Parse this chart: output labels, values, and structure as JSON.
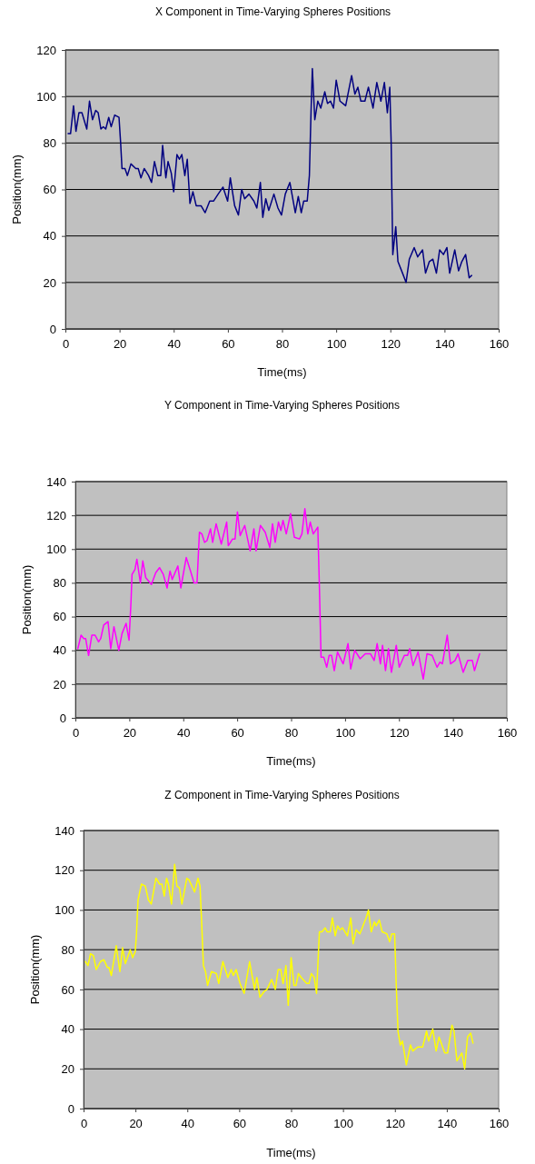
{
  "chart_data": [
    {
      "type": "line",
      "title": "X Component in Time-Varying Spheres Positions",
      "xlabel": "Time(ms)",
      "ylabel": "Position(mm)",
      "xlim": [
        0,
        160
      ],
      "xticks": [
        0,
        20,
        40,
        60,
        80,
        100,
        120,
        140,
        160
      ],
      "ylim": [
        0,
        120
      ],
      "yticks": [
        0,
        20,
        40,
        60,
        80,
        100,
        120
      ],
      "grid": "y",
      "series": [
        {
          "color": "#000080",
          "x": [
            1,
            1.9,
            3,
            3.9,
            5,
            6.1,
            7.9,
            8.9,
            10,
            11.2,
            12.1,
            13.1,
            14,
            14.9,
            16,
            16.9,
            18.2,
            19.8,
            20.4,
            20.9,
            22,
            22.9,
            24.2,
            26,
            26.9,
            27.9,
            29.1,
            30.7,
            31.8,
            32.9,
            34.1,
            35.2,
            35.9,
            37.1,
            37.9,
            39.1,
            40,
            41.2,
            42.1,
            43,
            44.1,
            45,
            46,
            47.1,
            48.3,
            50.1,
            51.6,
            53.3,
            54.7,
            56.4,
            58.2,
            59.9,
            60.9,
            62.5,
            63.9,
            65.1,
            66.2,
            67.8,
            69.6,
            70.7,
            72,
            72.9,
            74,
            75.1,
            77,
            78.5,
            79.8,
            81.2,
            82.9,
            84.9,
            86,
            87.1,
            88,
            89.3,
            90.1,
            90.7,
            91.2,
            92.1,
            93.2,
            94.3,
            95.8,
            96.8,
            97.9,
            99,
            100,
            101.4,
            103.5,
            105.7,
            106.9,
            108,
            109.1,
            110.6,
            111.9,
            113.6,
            115,
            116.5,
            117.8,
            118.9,
            119.8,
            120.3,
            120.9,
            122,
            122.8,
            124.5,
            125.8,
            127,
            128.8,
            130.1,
            131.9,
            133,
            134.4,
            135.7,
            137,
            138.2,
            139.6,
            140.9,
            141.9,
            143.8,
            145.2,
            146.4,
            147.8,
            149.1,
            150
          ],
          "values": [
            84,
            84,
            96,
            85,
            93,
            93,
            86,
            98,
            90,
            94,
            93,
            86,
            87,
            86,
            91,
            87,
            92,
            91,
            80,
            69,
            69,
            66,
            71,
            69,
            69,
            65,
            69,
            66,
            63,
            72,
            66,
            66,
            79,
            65,
            72,
            67,
            59,
            75,
            73,
            75,
            66,
            73,
            54,
            59,
            53,
            53,
            50,
            55,
            55,
            58,
            61,
            55,
            65,
            53,
            49,
            60,
            56,
            58,
            55,
            52,
            63,
            48,
            56,
            51,
            58,
            52,
            49,
            58,
            63,
            50,
            57,
            50,
            55,
            55,
            66,
            93,
            112,
            90,
            98,
            95,
            102,
            97,
            98,
            95,
            107,
            98,
            96,
            109,
            101,
            104,
            98,
            98,
            104,
            95,
            106,
            98,
            106,
            93,
            104,
            80,
            32,
            44,
            29,
            24,
            20,
            30,
            35,
            31,
            34,
            24,
            29,
            30,
            24,
            34,
            32,
            35,
            24,
            34,
            25,
            29,
            32,
            22,
            23
          ]
        }
      ]
    },
    {
      "type": "line",
      "title": "Y Component in Time-Varying Spheres Positions",
      "xlabel": "Time(ms)",
      "ylabel": "Position(mm)",
      "xlim": [
        0,
        160
      ],
      "xticks": [
        0,
        20,
        40,
        60,
        80,
        100,
        120,
        140,
        160
      ],
      "ylim": [
        0,
        140
      ],
      "yticks": [
        0,
        20,
        40,
        60,
        80,
        100,
        120,
        140
      ],
      "grid": "y",
      "series": [
        {
          "color": "#ff00ff",
          "x": [
            0.9,
            2.1,
            3.1,
            3.8,
            4.9,
            6.1,
            7.3,
            8.6,
            9.4,
            10.5,
            12.1,
            13.1,
            14.3,
            16.1,
            17.3,
            18.8,
            19.9,
            20.6,
            21,
            22.1,
            22.8,
            24.1,
            25,
            26.1,
            28.2,
            29.8,
            31.2,
            32.6,
            34,
            35.1,
            35.9,
            38,
            39.1,
            41.1,
            42.7,
            44,
            45.1,
            46,
            46.9,
            47.9,
            48.8,
            50.1,
            50.9,
            52.2,
            54.1,
            56.1,
            56.7,
            58.3,
            59.2,
            60.1,
            61.1,
            62.8,
            64.8,
            66.2,
            67,
            68.6,
            70.4,
            72.1,
            73.1,
            74.1,
            75.3,
            76.2,
            77,
            78.2,
            79.8,
            81.2,
            83.1,
            84,
            85.1,
            86.2,
            87.1,
            88.2,
            89.9,
            90.5,
            91.1,
            92.1,
            93.2,
            94.1,
            95,
            96,
            97.2,
            99.3,
            101.1,
            102.1,
            103.6,
            105.6,
            107.5,
            109.4,
            110.8,
            111.9,
            113.1,
            113.9,
            115,
            116.1,
            117.2,
            119,
            120.1,
            122,
            123.2,
            124,
            125.2,
            127.1,
            129,
            130.4,
            132.3,
            134.1,
            135.2,
            136.1,
            137.9,
            139.1,
            140.8,
            141.9,
            143.8,
            145.5,
            147.2,
            148,
            149.9
          ],
          "values": [
            41,
            49,
            47,
            47,
            37,
            49,
            49,
            45,
            47,
            55,
            57,
            41,
            54,
            40,
            50,
            56,
            46,
            68,
            85,
            88,
            94,
            80,
            93,
            83,
            79,
            86,
            89,
            85,
            77,
            87,
            82,
            90,
            77,
            95,
            87,
            80,
            80,
            110,
            109,
            104,
            105,
            112,
            104,
            115,
            103,
            116,
            102,
            106,
            106,
            122,
            108,
            114,
            99,
            112,
            99,
            114,
            110,
            101,
            115,
            104,
            116,
            111,
            117,
            109,
            121,
            107,
            106,
            109,
            124,
            109,
            116,
            109,
            113,
            77,
            36,
            36,
            30,
            37,
            37,
            28,
            39,
            32,
            44,
            29,
            40,
            35,
            38,
            38,
            34,
            44,
            32,
            43,
            28,
            41,
            27,
            43,
            30,
            37,
            37,
            41,
            31,
            39,
            23,
            38,
            37,
            30,
            33,
            32,
            49,
            32,
            34,
            38,
            27,
            34,
            34,
            28,
            38
          ]
        }
      ]
    },
    {
      "type": "line",
      "title": "Z Component in Time-Varying Spheres Positions",
      "xlabel": "Time(ms)",
      "ylabel": "Position(mm)",
      "xlim": [
        0,
        160
      ],
      "xticks": [
        0,
        20,
        40,
        60,
        80,
        100,
        120,
        140,
        160
      ],
      "ylim": [
        0,
        140
      ],
      "yticks": [
        0,
        20,
        40,
        60,
        80,
        100,
        120,
        140
      ],
      "grid": "y",
      "series": [
        {
          "color": "#ffff00",
          "x": [
            0.7,
            1.7,
            2.7,
            3.8,
            4.9,
            6.5,
            7.8,
            9.2,
            9.8,
            10.7,
            12.6,
            14,
            15,
            16.1,
            18,
            18.9,
            19.9,
            20.4,
            21,
            22.3,
            23.8,
            25,
            26.1,
            27.9,
            29.3,
            30.2,
            31.1,
            32,
            32.7,
            33.9,
            35.1,
            36,
            37,
            37.9,
            39.8,
            40.7,
            42.8,
            44.1,
            44.9,
            45.6,
            46.2,
            47,
            47.8,
            49.3,
            51.2,
            52.1,
            53.7,
            55.6,
            56.9,
            57.7,
            58.8,
            60.3,
            61.9,
            64,
            65.9,
            66.8,
            68,
            69.6,
            70.7,
            72.5,
            73.9,
            75,
            76,
            76.9,
            78,
            78.9,
            80,
            81.1,
            81.9,
            82.8,
            83.9,
            86,
            86.9,
            87.8,
            88.9,
            89.8,
            90.9,
            91.9,
            93.1,
            93.9,
            95.1,
            95.9,
            97,
            97.9,
            98.9,
            99.8,
            101.7,
            103,
            103.9,
            105.1,
            106.5,
            108.9,
            109.8,
            110.9,
            112.1,
            112.8,
            114,
            115.1,
            116.9,
            118,
            118.8,
            119.9,
            120.5,
            121.2,
            122.1,
            122.9,
            124.4,
            126,
            126.9,
            128.8,
            130.7,
            132.2,
            133,
            134.6,
            135.9,
            137,
            139.2,
            140.3,
            142,
            142.8,
            143.9,
            145.8,
            146.9,
            148,
            149.2,
            150.1
          ],
          "values": [
            74,
            72,
            78,
            77,
            70,
            74,
            75,
            71,
            71,
            67,
            82,
            69,
            81,
            73,
            80,
            76,
            79,
            88,
            105,
            113,
            112,
            105,
            103,
            116,
            113,
            113,
            107,
            116,
            113,
            103,
            123,
            112,
            111,
            103,
            116,
            115,
            109,
            116,
            112,
            91,
            72,
            69,
            62,
            69,
            68,
            63,
            74,
            66,
            70,
            67,
            70,
            63,
            58,
            74,
            60,
            66,
            56,
            59,
            60,
            65,
            60,
            70,
            70,
            63,
            72,
            52,
            76,
            62,
            62,
            68,
            66,
            63,
            63,
            68,
            66,
            58,
            89,
            89,
            91,
            89,
            89,
            96,
            87,
            92,
            90,
            91,
            87,
            96,
            83,
            90,
            88,
            96,
            100,
            89,
            94,
            92,
            95,
            89,
            88,
            84,
            88,
            88,
            63,
            39,
            32,
            34,
            22,
            32,
            29,
            31,
            31,
            39,
            34,
            40,
            29,
            36,
            28,
            28,
            42,
            39,
            24,
            28,
            20,
            36,
            38,
            33
          ]
        }
      ]
    }
  ]
}
